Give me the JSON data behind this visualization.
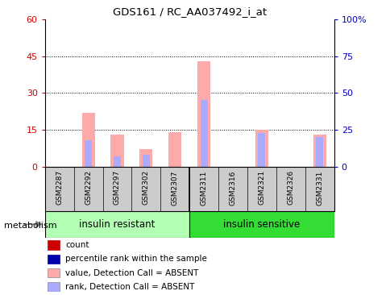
{
  "title": "GDS161 / RC_AA037492_i_at",
  "samples": [
    "GSM2287",
    "GSM2292",
    "GSM2297",
    "GSM2302",
    "GSM2307",
    "GSM2311",
    "GSM2316",
    "GSM2321",
    "GSM2326",
    "GSM2331"
  ],
  "absent_value": [
    0,
    22,
    13,
    7,
    14,
    43,
    0,
    15,
    0,
    13
  ],
  "absent_rank": [
    0,
    18,
    7,
    8,
    0,
    45,
    0,
    23,
    0,
    20
  ],
  "ylim_left": [
    0,
    60
  ],
  "ylim_right": [
    0,
    100
  ],
  "yticks_left": [
    0,
    15,
    30,
    45,
    60
  ],
  "yticks_right": [
    0,
    25,
    50,
    75,
    100
  ],
  "ytick_labels_right": [
    "0",
    "25",
    "50",
    "75",
    "100%"
  ],
  "group1_label": "insulin resistant",
  "group2_label": "insulin sensitive",
  "group1_color": "#b3ffb3",
  "group2_color": "#33dd33",
  "absent_value_color": "#ffaaaa",
  "absent_rank_color": "#aaaaff",
  "count_color": "#cc0000",
  "rank_color": "#0000aa",
  "tick_color_left": "#cc0000",
  "tick_color_right": "#0000cc",
  "metabolism_label": "metabolism",
  "sample_bg_color": "#cccccc",
  "legend_items": [
    {
      "label": "count",
      "color": "#cc0000"
    },
    {
      "label": "percentile rank within the sample",
      "color": "#0000aa"
    },
    {
      "label": "value, Detection Call = ABSENT",
      "color": "#ffaaaa"
    },
    {
      "label": "rank, Detection Call = ABSENT",
      "color": "#aaaaff"
    }
  ]
}
